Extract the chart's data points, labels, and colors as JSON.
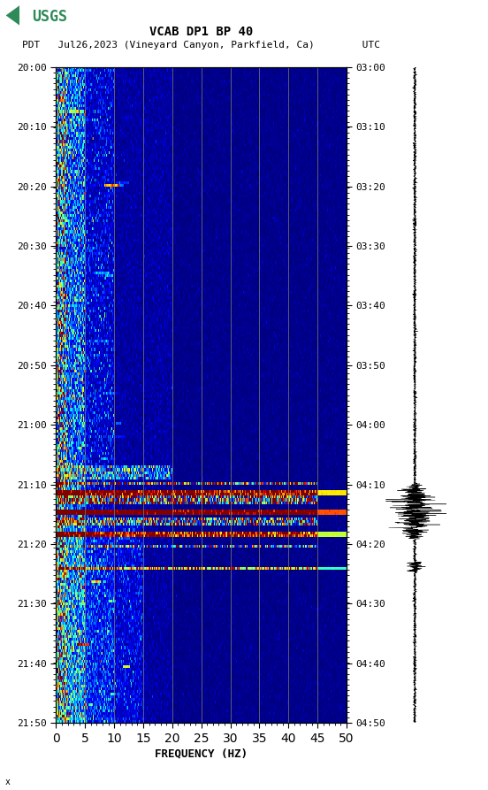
{
  "title_line1": "VCAB DP1 BP 40",
  "title_line2": "PDT   Jul26,2023 (Vineyard Canyon, Parkfield, Ca)        UTC",
  "xlabel": "FREQUENCY (HZ)",
  "freq_min": 0,
  "freq_max": 50,
  "freq_ticks": [
    0,
    5,
    10,
    15,
    20,
    25,
    30,
    35,
    40,
    45,
    50
  ],
  "time_ticks_left": [
    "20:00",
    "20:10",
    "20:20",
    "20:30",
    "20:40",
    "20:50",
    "21:00",
    "21:10",
    "21:20",
    "21:30",
    "21:40",
    "21:50"
  ],
  "time_ticks_right": [
    "03:00",
    "03:10",
    "03:20",
    "03:30",
    "03:40",
    "03:50",
    "04:00",
    "04:10",
    "04:20",
    "04:30",
    "04:40",
    "04:50"
  ],
  "vertical_lines_freq": [
    5,
    10,
    15,
    20,
    25,
    30,
    35,
    40,
    45
  ],
  "vline_color": "#808060",
  "background_color": "#ffffff",
  "colormap": "jet",
  "fig_width": 5.52,
  "fig_height": 8.93,
  "usgs_logo_color": "#2e8b57",
  "seed": 42,
  "num_time_bins": 240,
  "num_freq_bins": 500
}
